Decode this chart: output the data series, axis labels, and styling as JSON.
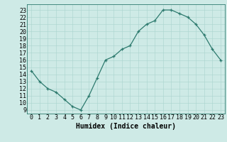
{
  "x": [
    0,
    1,
    2,
    3,
    4,
    5,
    6,
    7,
    8,
    9,
    10,
    11,
    12,
    13,
    14,
    15,
    16,
    17,
    18,
    19,
    20,
    21,
    22,
    23
  ],
  "y": [
    14.5,
    13.0,
    12.0,
    11.5,
    10.5,
    9.5,
    9.0,
    11.0,
    13.5,
    16.0,
    16.5,
    17.5,
    18.0,
    20.0,
    21.0,
    21.5,
    23.0,
    23.0,
    22.5,
    22.0,
    21.0,
    19.5,
    17.5,
    16.0
  ],
  "line_color": "#2d7a6e",
  "marker": "+",
  "markersize": 3,
  "linewidth": 0.9,
  "background_color": "#ceeae6",
  "grid_color": "#aad4ce",
  "xlabel": "Humidex (Indice chaleur)",
  "xlim": [
    -0.5,
    23.5
  ],
  "ylim": [
    8.5,
    23.8
  ],
  "xticks": [
    0,
    1,
    2,
    3,
    4,
    5,
    6,
    7,
    8,
    9,
    10,
    11,
    12,
    13,
    14,
    15,
    16,
    17,
    18,
    19,
    20,
    21,
    22,
    23
  ],
  "yticks": [
    9,
    10,
    11,
    12,
    13,
    14,
    15,
    16,
    17,
    18,
    19,
    20,
    21,
    22,
    23
  ],
  "xlabel_fontsize": 7,
  "tick_fontsize": 6
}
